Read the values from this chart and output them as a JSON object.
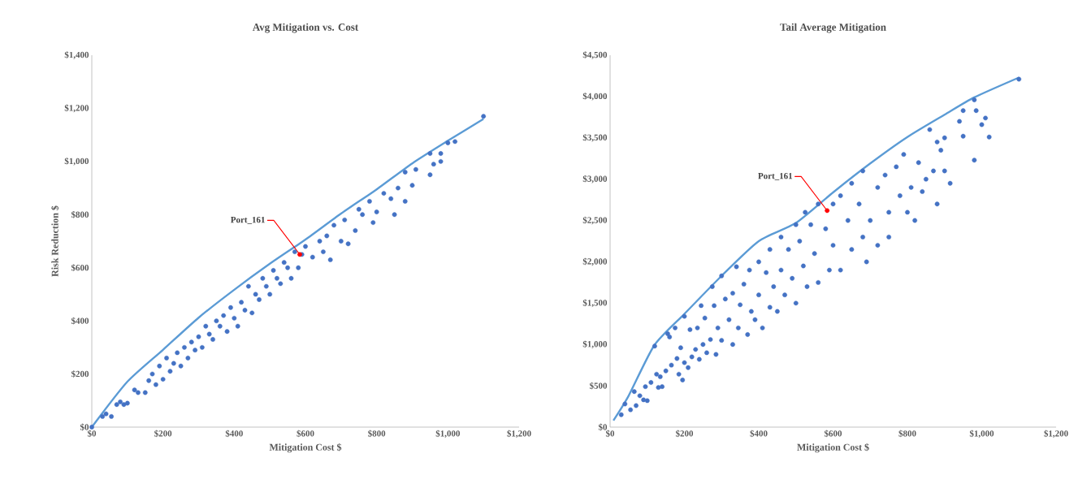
{
  "chart_data": [
    {
      "type": "scatter",
      "title": "Avg Mitigation vs. Cost",
      "xlabel": "Mitigation Cost $",
      "ylabel": "Risk Reduction $",
      "xlim": [
        0,
        1200
      ],
      "ylim": [
        0,
        1400
      ],
      "xticks": [
        {
          "value": 0,
          "label": "$0"
        },
        {
          "value": 200,
          "label": "$200"
        },
        {
          "value": 400,
          "label": "$400"
        },
        {
          "value": 600,
          "label": "$600"
        },
        {
          "value": 800,
          "label": "$800"
        },
        {
          "value": 1000,
          "label": "$1,000"
        },
        {
          "value": 1200,
          "label": "$1,200"
        }
      ],
      "yticks": [
        {
          "value": 0,
          "label": "$0"
        },
        {
          "value": 200,
          "label": "$200"
        },
        {
          "value": 400,
          "label": "$400"
        },
        {
          "value": 600,
          "label": "$600"
        },
        {
          "value": 800,
          "label": "$800"
        },
        {
          "value": 1000,
          "label": "$1,000"
        },
        {
          "value": 1200,
          "label": "$1,200"
        },
        {
          "value": 1400,
          "label": "$1,400"
        }
      ],
      "series": [
        {
          "marker": "circle",
          "color": "#4472c4",
          "x": [
            0,
            30,
            40,
            55,
            70,
            80,
            90,
            100,
            120,
            130,
            150,
            160,
            170,
            180,
            190,
            200,
            210,
            220,
            230,
            240,
            250,
            260,
            270,
            280,
            290,
            300,
            310,
            320,
            330,
            340,
            350,
            360,
            370,
            380,
            390,
            400,
            410,
            420,
            430,
            440,
            450,
            460,
            470,
            480,
            490,
            500,
            510,
            520,
            530,
            540,
            550,
            560,
            570,
            580,
            590,
            600,
            620,
            640,
            650,
            660,
            670,
            680,
            700,
            710,
            720,
            740,
            750,
            760,
            780,
            790,
            800,
            820,
            840,
            850,
            860,
            880,
            880,
            900,
            910,
            950,
            950,
            960,
            980,
            980,
            1000,
            1020,
            1100
          ],
          "values": [
            0,
            40,
            50,
            40,
            85,
            95,
            85,
            90,
            140,
            130,
            130,
            175,
            200,
            160,
            230,
            180,
            260,
            210,
            240,
            280,
            230,
            300,
            260,
            320,
            290,
            340,
            300,
            380,
            350,
            330,
            400,
            380,
            420,
            360,
            450,
            410,
            380,
            470,
            440,
            530,
            430,
            500,
            480,
            560,
            530,
            500,
            590,
            560,
            540,
            620,
            600,
            560,
            660,
            600,
            650,
            680,
            640,
            700,
            660,
            720,
            630,
            760,
            700,
            780,
            690,
            740,
            820,
            800,
            850,
            770,
            810,
            880,
            860,
            800,
            900,
            960,
            850,
            910,
            970,
            1030,
            950,
            990,
            1030,
            1000,
            1070,
            1075,
            1170
          ]
        },
        {
          "type": "line",
          "marker": "none",
          "color": "#5b9bd5",
          "x": [
            0,
            100,
            200,
            300,
            400,
            500,
            600,
            700,
            800,
            900,
            1000,
            1100
          ],
          "values": [
            0,
            171,
            291,
            412,
            517,
            615,
            706,
            804,
            895,
            993,
            1078,
            1160
          ]
        },
        {
          "marker": "circle",
          "color": "#ff0000",
          "x": [
            584
          ],
          "values": [
            650
          ]
        }
      ],
      "annotations": [
        {
          "text": "Port_161",
          "x": 584,
          "y": 650
        }
      ]
    },
    {
      "type": "scatter",
      "title": "Tail Average Mitigation",
      "xlabel": "Mitigation Cost $",
      "xlim": [
        0,
        1200
      ],
      "ylim": [
        0,
        4500
      ],
      "xticks": [
        {
          "value": 0,
          "label": "$0"
        },
        {
          "value": 200,
          "label": "$200"
        },
        {
          "value": 400,
          "label": "$400"
        },
        {
          "value": 600,
          "label": "$600"
        },
        {
          "value": 800,
          "label": "$800"
        },
        {
          "value": 1000,
          "label": "$1,000"
        },
        {
          "value": 1200,
          "label": "$1,200"
        }
      ],
      "yticks": [
        {
          "value": 0,
          "label": "$0"
        },
        {
          "value": 500,
          "label": "$500"
        },
        {
          "value": 1000,
          "label": "$1,000"
        },
        {
          "value": 1500,
          "label": "$1,500"
        },
        {
          "value": 2000,
          "label": "$2,000"
        },
        {
          "value": 2500,
          "label": "$2,500"
        },
        {
          "value": 3000,
          "label": "$3,000"
        },
        {
          "value": 3500,
          "label": "$3,500"
        },
        {
          "value": 4000,
          "label": "$4,000"
        },
        {
          "value": 4500,
          "label": "$4,500"
        }
      ],
      "series": [
        {
          "marker": "circle",
          "color": "#4472c4",
          "x": [
            30,
            40,
            55,
            65,
            70,
            80,
            90,
            95,
            100,
            110,
            120,
            125,
            130,
            135,
            140,
            150,
            155,
            160,
            165,
            175,
            180,
            185,
            190,
            195,
            200,
            200,
            210,
            215,
            220,
            230,
            235,
            240,
            245,
            250,
            255,
            260,
            270,
            275,
            280,
            285,
            290,
            300,
            300,
            310,
            320,
            330,
            330,
            340,
            345,
            350,
            360,
            370,
            375,
            380,
            390,
            400,
            400,
            410,
            420,
            430,
            430,
            440,
            450,
            460,
            460,
            470,
            480,
            490,
            500,
            500,
            510,
            520,
            525,
            530,
            540,
            550,
            560,
            560,
            580,
            590,
            600,
            600,
            620,
            620,
            640,
            650,
            650,
            670,
            680,
            680,
            690,
            700,
            720,
            720,
            740,
            750,
            750,
            770,
            780,
            790,
            800,
            810,
            820,
            830,
            840,
            850,
            860,
            870,
            880,
            880,
            890,
            900,
            900,
            915,
            940,
            950,
            950,
            980,
            980,
            985,
            1000,
            1010,
            1020,
            1100
          ],
          "values": [
            150,
            280,
            210,
            430,
            260,
            380,
            330,
            490,
            320,
            540,
            980,
            640,
            480,
            610,
            490,
            680,
            1130,
            1090,
            750,
            1200,
            830,
            640,
            960,
            570,
            780,
            1340,
            720,
            1180,
            850,
            940,
            1200,
            820,
            1470,
            1000,
            1320,
            900,
            1060,
            1700,
            1470,
            880,
            1200,
            1830,
            1050,
            1550,
            1300,
            1000,
            1620,
            1940,
            1200,
            1480,
            1730,
            1120,
            1900,
            1400,
            1300,
            2000,
            1600,
            1200,
            1870,
            2150,
            1450,
            1700,
            1400,
            2300,
            1900,
            1600,
            2150,
            1800,
            2450,
            1500,
            2250,
            1950,
            2600,
            1700,
            2450,
            2100,
            2700,
            1750,
            2400,
            1900,
            2700,
            2200,
            2800,
            1900,
            2500,
            2950,
            2150,
            2700,
            3100,
            2300,
            2000,
            2500,
            2900,
            2200,
            3050,
            2600,
            2300,
            3150,
            2800,
            3300,
            2600,
            2900,
            2500,
            3200,
            2850,
            3000,
            3600,
            3100,
            2700,
            3450,
            3350,
            3100,
            3500,
            2950,
            3700,
            3520,
            3830,
            3960,
            3230,
            3830,
            3660,
            3740,
            3510,
            4210
          ]
        },
        {
          "type": "line",
          "marker": "none",
          "color": "#5b9bd5",
          "x": [
            9,
            50,
            119,
            200,
            300,
            400,
            500,
            600,
            700,
            800,
            900,
            980,
            1100
          ],
          "values": [
            80,
            380,
            990,
            1370,
            1830,
            2250,
            2470,
            2840,
            3190,
            3510,
            3780,
            3990,
            4230
          ]
        },
        {
          "marker": "circle",
          "color": "#ff0000",
          "x": [
            584
          ],
          "values": [
            2620
          ]
        }
      ],
      "annotations": [
        {
          "text": "Port_161",
          "x": 584,
          "y": 2620
        }
      ]
    }
  ]
}
